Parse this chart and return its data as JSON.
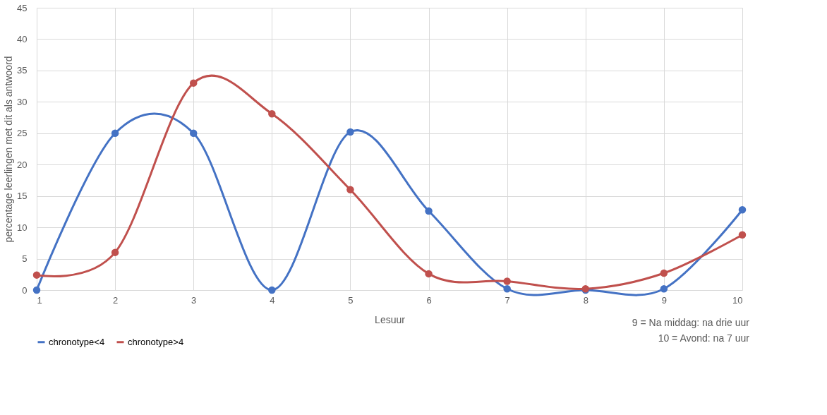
{
  "chart_data": {
    "type": "line",
    "xlabel": "Lesuur",
    "ylabel": "percentage leerlingen met dit als antwoord",
    "x": [
      1,
      2,
      3,
      4,
      5,
      6,
      7,
      8,
      9,
      10
    ],
    "series": [
      {
        "name": "chronotype<4",
        "color": "#4472c4",
        "values": [
          0,
          25,
          25,
          0,
          25.2,
          12.6,
          0.2,
          0,
          0.2,
          12.8
        ]
      },
      {
        "name": "chronotype>4",
        "color": "#c0504d",
        "values": [
          2.4,
          6,
          33,
          28.1,
          16,
          2.6,
          1.4,
          0.2,
          2.7,
          8.8
        ]
      }
    ],
    "xlim": [
      1,
      10
    ],
    "xticks": [
      1,
      2,
      3,
      4,
      5,
      6,
      7,
      8,
      9,
      10
    ],
    "ylim": [
      0,
      45
    ],
    "yticks": [
      0,
      5,
      10,
      15,
      20,
      25,
      30,
      35,
      40,
      45
    ],
    "grid": true,
    "legend": "bottom",
    "marker": "circle",
    "line_style": "solid",
    "annotations": [
      "9 = Na middag: na drie uur",
      "10 = Avond: na 7 uur"
    ]
  }
}
